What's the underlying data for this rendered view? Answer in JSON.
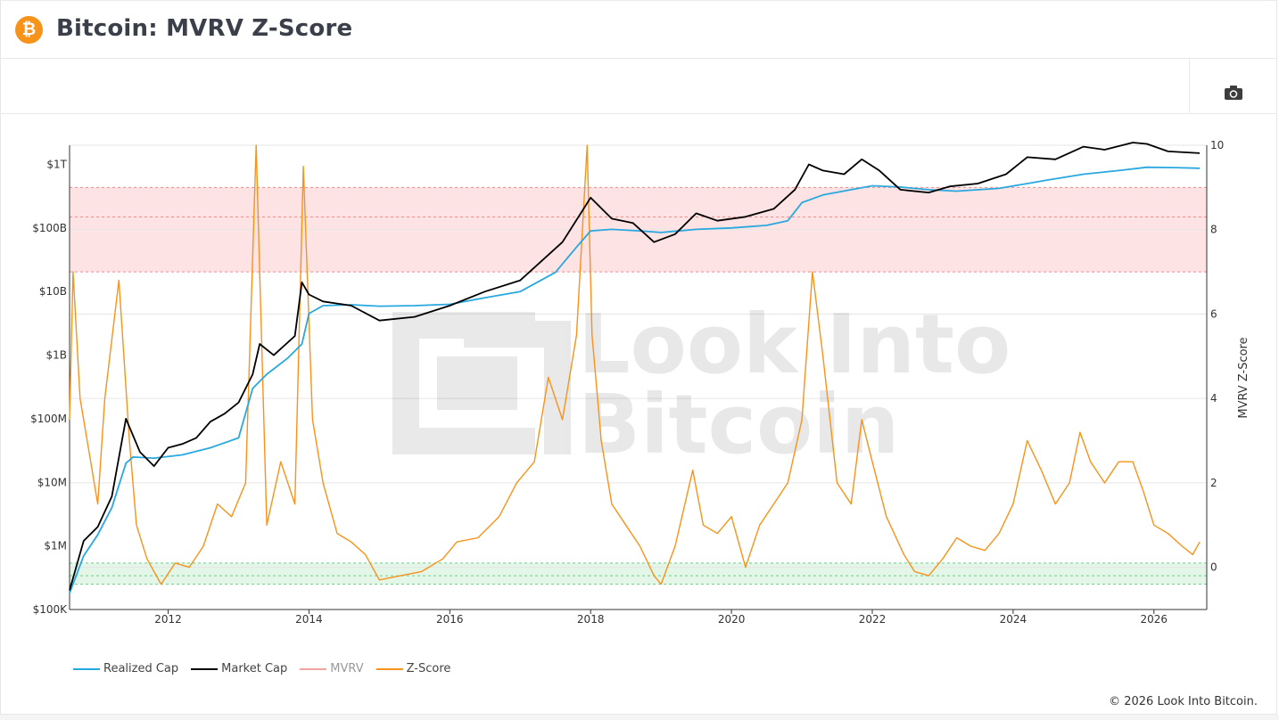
{
  "header": {
    "title": "Bitcoin: MVRV Z-Score",
    "logo_glyph": "₿",
    "logo_color": "#f7931a"
  },
  "toolbar": {
    "camera_icon": "camera-icon"
  },
  "footer": {
    "copyright": "© 2026 Look Into Bitcoin."
  },
  "watermark": {
    "line1": "Look Into",
    "line2": "Bitcoin"
  },
  "legend": [
    {
      "label": "Realized Cap",
      "color": "#29a8e0",
      "dim": false
    },
    {
      "label": "Market Cap",
      "color": "#000000",
      "dim": false
    },
    {
      "label": "MVRV",
      "color": "#f4a3a3",
      "dim": true
    },
    {
      "label": "Z-Score",
      "color": "#f7931a",
      "dim": false
    }
  ],
  "chart_data": {
    "type": "line",
    "title": "Bitcoin: MVRV Z-Score",
    "x_range": [
      2010.6,
      2026.75
    ],
    "x_ticks": [
      2012,
      2014,
      2016,
      2018,
      2020,
      2022,
      2024,
      2026
    ],
    "y_left": {
      "scale": "log",
      "ylim": [
        100000,
        2000000000000.0
      ],
      "ticks": [
        100000,
        1000000,
        10000000,
        100000000,
        1000000000,
        10000000000,
        100000000000,
        1000000000000
      ],
      "tick_labels": [
        "$100K",
        "$1M",
        "$10M",
        "$100M",
        "$1B",
        "$10B",
        "$100B",
        "$1T"
      ]
    },
    "y_right": {
      "label": "MVRV Z-Score",
      "ylim": [
        -1,
        10
      ],
      "ticks": [
        0,
        2,
        4,
        6,
        8,
        10
      ]
    },
    "bands": [
      {
        "axis": "right",
        "from": 7,
        "to": 9,
        "color": "#fde3e3"
      },
      {
        "axis": "right",
        "from": -0.4,
        "to": 0.1,
        "color": "#e3f6e8"
      }
    ],
    "band_lines": [
      {
        "axis": "right",
        "value": 9.0,
        "color": "#e88f8f"
      },
      {
        "axis": "right",
        "value": 8.3,
        "color": "#e88f8f"
      },
      {
        "axis": "right",
        "value": 7.0,
        "color": "#e88f8f"
      },
      {
        "axis": "right",
        "value": 0.1,
        "color": "#74c98c"
      },
      {
        "axis": "right",
        "value": -0.2,
        "color": "#74c98c"
      },
      {
        "axis": "right",
        "value": -0.4,
        "color": "#74c98c"
      }
    ],
    "series": [
      {
        "name": "Realized Cap",
        "axis": "left",
        "color": "#29a8e0",
        "x": [
          2010.6,
          2010.8,
          2011.0,
          2011.2,
          2011.4,
          2011.5,
          2011.8,
          2012.2,
          2012.6,
          2013.0,
          2013.2,
          2013.4,
          2013.7,
          2013.9,
          2014.0,
          2014.2,
          2014.6,
          2015.0,
          2015.5,
          2016.0,
          2016.5,
          2017.0,
          2017.5,
          2017.8,
          2018.0,
          2018.3,
          2018.7,
          2019.0,
          2019.5,
          2020.0,
          2020.5,
          2020.8,
          2021.0,
          2021.3,
          2021.7,
          2022.0,
          2022.4,
          2022.8,
          2023.2,
          2023.8,
          2024.2,
          2024.5,
          2025.0,
          2025.5,
          2025.9,
          2026.3,
          2026.65
        ],
        "y": [
          180000,
          700000,
          1500000,
          4000000,
          20000000,
          25000000,
          24000000,
          27000000,
          35000000,
          50000000,
          300000000,
          500000000,
          900000000,
          1500000000,
          4500000000,
          6000000000,
          6200000000,
          5900000000,
          6000000000,
          6300000000,
          8000000000,
          10000000000,
          20000000000,
          50000000000,
          90000000000,
          95000000000,
          90000000000,
          85000000000,
          95000000000,
          100000000000,
          110000000000,
          130000000000,
          250000000000,
          330000000000,
          400000000000,
          460000000000,
          440000000000,
          400000000000,
          380000000000,
          420000000000,
          500000000000,
          570000000000,
          700000000000,
          800000000000,
          900000000000,
          890000000000,
          870000000000
        ]
      },
      {
        "name": "Market Cap",
        "axis": "left",
        "color": "#000000",
        "x": [
          2010.6,
          2010.8,
          2011.0,
          2011.2,
          2011.4,
          2011.6,
          2011.8,
          2012.0,
          2012.2,
          2012.4,
          2012.6,
          2012.8,
          2013.0,
          2013.2,
          2013.3,
          2013.5,
          2013.8,
          2013.9,
          2014.0,
          2014.2,
          2014.6,
          2015.0,
          2015.5,
          2016.0,
          2016.5,
          2017.0,
          2017.3,
          2017.6,
          2017.9,
          2018.0,
          2018.3,
          2018.6,
          2018.9,
          2019.2,
          2019.5,
          2019.8,
          2020.2,
          2020.6,
          2020.9,
          2021.1,
          2021.3,
          2021.6,
          2021.85,
          2022.1,
          2022.4,
          2022.8,
          2023.1,
          2023.5,
          2023.9,
          2024.2,
          2024.6,
          2025.0,
          2025.3,
          2025.7,
          2025.9,
          2026.2,
          2026.65
        ],
        "y": [
          200000,
          1200000,
          2000000,
          6000000,
          100000000,
          30000000,
          18000000,
          35000000,
          40000000,
          50000000,
          90000000,
          120000000,
          180000000,
          500000000,
          1500000000,
          1000000000,
          2000000000,
          14000000000,
          9000000000,
          7000000000,
          6000000000,
          3500000000,
          4000000000,
          6000000000,
          10000000000,
          15000000000,
          30000000000,
          60000000000,
          200000000000,
          300000000000,
          140000000000,
          120000000000,
          60000000000,
          80000000000,
          170000000000,
          130000000000,
          150000000000,
          200000000000,
          400000000000,
          1000000000000,
          800000000000,
          700000000000,
          1200000000000,
          800000000000,
          400000000000,
          360000000000,
          450000000000,
          500000000000,
          700000000000,
          1300000000000,
          1200000000000,
          1900000000000,
          1700000000000,
          2200000000000,
          2100000000000,
          1600000000000,
          1500000000000
        ]
      },
      {
        "name": "Z-Score",
        "axis": "right",
        "color": "#f7931a",
        "x": [
          2010.6,
          2010.65,
          2010.75,
          2010.9,
          2011.0,
          2011.1,
          2011.3,
          2011.45,
          2011.55,
          2011.7,
          2011.9,
          2012.1,
          2012.3,
          2012.5,
          2012.7,
          2012.9,
          2013.1,
          2013.25,
          2013.4,
          2013.6,
          2013.8,
          2013.92,
          2014.05,
          2014.2,
          2014.4,
          2014.6,
          2014.8,
          2015.0,
          2015.3,
          2015.6,
          2015.9,
          2016.1,
          2016.4,
          2016.7,
          2016.95,
          2017.2,
          2017.4,
          2017.6,
          2017.8,
          2017.95,
          2018.02,
          2018.15,
          2018.3,
          2018.5,
          2018.7,
          2018.9,
          2019.0,
          2019.2,
          2019.45,
          2019.6,
          2019.8,
          2020.0,
          2020.2,
          2020.4,
          2020.6,
          2020.8,
          2021.0,
          2021.15,
          2021.3,
          2021.5,
          2021.7,
          2021.85,
          2022.0,
          2022.2,
          2022.45,
          2022.6,
          2022.8,
          2023.0,
          2023.2,
          2023.4,
          2023.6,
          2023.8,
          2024.0,
          2024.2,
          2024.4,
          2024.6,
          2024.8,
          2024.95,
          2025.1,
          2025.3,
          2025.5,
          2025.7,
          2025.85,
          2026.0,
          2026.2,
          2026.4,
          2026.55,
          2026.65
        ],
        "y": [
          3.5,
          7.0,
          4.0,
          2.5,
          1.5,
          4.0,
          6.8,
          3.0,
          1.0,
          0.2,
          -0.4,
          0.1,
          0.0,
          0.5,
          1.5,
          1.2,
          2.0,
          10.0,
          1.0,
          2.5,
          1.5,
          9.5,
          3.5,
          2.0,
          0.8,
          0.6,
          0.3,
          -0.3,
          -0.2,
          -0.1,
          0.2,
          0.6,
          0.7,
          1.2,
          2.0,
          2.5,
          4.5,
          3.5,
          5.5,
          10.0,
          5.5,
          3.0,
          1.5,
          1.0,
          0.5,
          -0.2,
          -0.4,
          0.5,
          2.3,
          1.0,
          0.8,
          1.2,
          0.0,
          1.0,
          1.5,
          2.0,
          3.5,
          7.0,
          5.0,
          2.0,
          1.5,
          3.5,
          2.5,
          1.2,
          0.3,
          -0.1,
          -0.2,
          0.2,
          0.7,
          0.5,
          0.4,
          0.8,
          1.5,
          3.0,
          2.3,
          1.5,
          2.0,
          3.2,
          2.5,
          2.0,
          2.5,
          2.5,
          1.8,
          1.0,
          0.8,
          0.5,
          0.3,
          0.6
        ]
      }
    ],
    "legend_position": "bottom-left",
    "grid": true
  }
}
